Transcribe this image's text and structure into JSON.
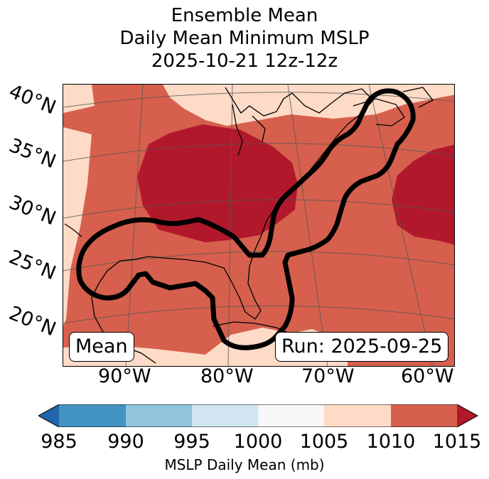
{
  "title": {
    "line1": "Ensemble Mean",
    "line2": "Daily Mean Minimum MSLP",
    "line3": "2025-10-21 12z-12z"
  },
  "map": {
    "lat_labels": [
      "40°N",
      "35°N",
      "30°N",
      "25°N",
      "20°N"
    ],
    "lon_labels": [
      "90°W",
      "80°W",
      "70°W",
      "60°W"
    ],
    "mean_badge": "Mean",
    "run_badge": "Run: 2025-09-25",
    "contour": "Black outline of the ensemble probability region along the US East/Gulf Coast",
    "colors": {
      "c1005_1010": "#fddbc7",
      "c1010_1015": "#d6604d",
      "c_over_1015": "#b2182b",
      "land_outline": "#000000",
      "gridlines": "#555555"
    }
  },
  "colorbar": {
    "ticks": [
      "985",
      "990",
      "995",
      "1000",
      "1005",
      "1010",
      "1015"
    ],
    "label": "MSLP Daily Mean (mb)",
    "colors": [
      "#2166ac",
      "#4393c3",
      "#92c5de",
      "#d1e5f0",
      "#f7f7f7",
      "#fddbc7",
      "#d6604d",
      "#b2182b"
    ]
  }
}
